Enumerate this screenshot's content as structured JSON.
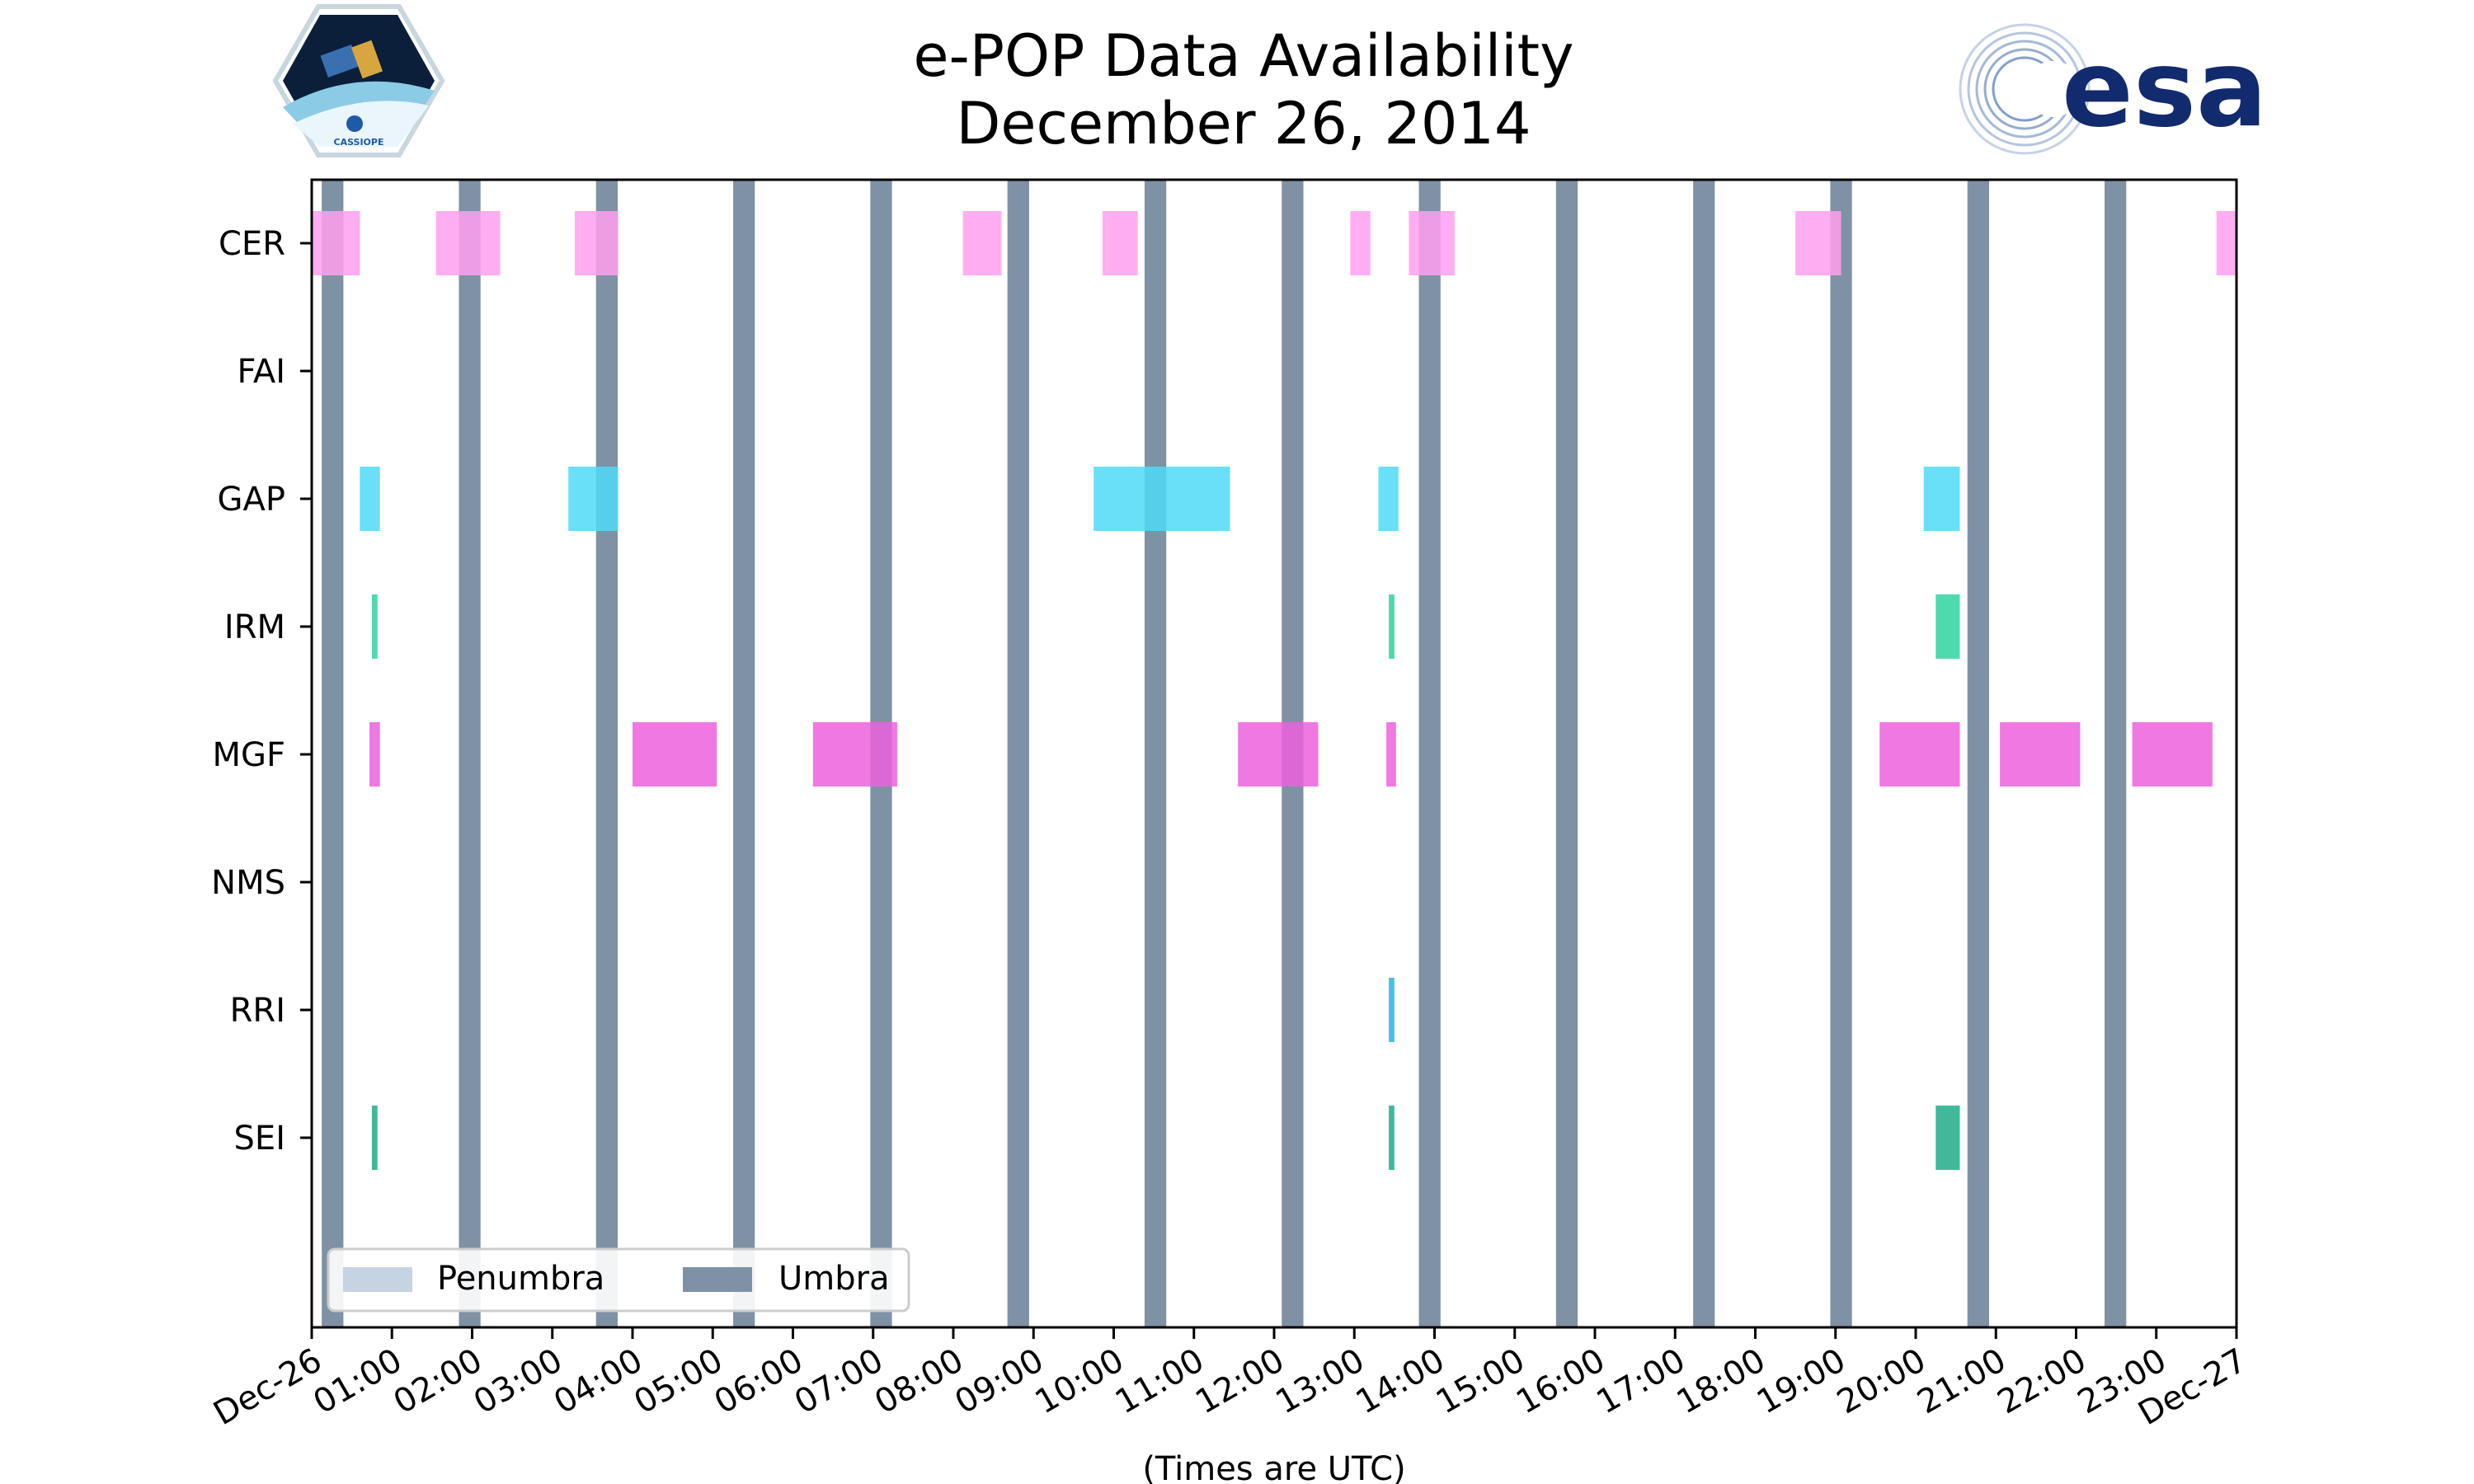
{
  "title": {
    "line1": "e-POP Data Availability",
    "line2": "December 26, 2014"
  },
  "logos": {
    "left": {
      "name": "cassiope-logo",
      "text": "CASSIOPE"
    },
    "right": {
      "name": "esa-logo",
      "text": "esa"
    }
  },
  "chart_data": {
    "type": "timeline",
    "title": "e-POP Data Availability December 26, 2014",
    "xlabel": "(Times are UTC)",
    "ylabel": "",
    "xlim_hours": [
      0,
      24
    ],
    "x_tick_labels": [
      "Dec-26",
      "01:00",
      "02:00",
      "03:00",
      "04:00",
      "05:00",
      "06:00",
      "07:00",
      "08:00",
      "09:00",
      "10:00",
      "11:00",
      "12:00",
      "13:00",
      "14:00",
      "15:00",
      "16:00",
      "17:00",
      "18:00",
      "19:00",
      "20:00",
      "21:00",
      "22:00",
      "23:00",
      "Dec-27"
    ],
    "instruments": [
      "CER",
      "FAI",
      "GAP",
      "IRM",
      "MGF",
      "NMS",
      "RRI",
      "SEI"
    ],
    "colors": {
      "CER": "#ff9ff0",
      "FAI": "#f2a35c",
      "GAP": "#4fd9f7",
      "IRM": "#2ed39e",
      "MGF": "#ec60de",
      "NMS": "#9a9a9a",
      "RRI": "#2ab3e8",
      "SEI": "#1fad88",
      "penumbra": "#c6d3e3",
      "umbra": "#7f91a4"
    },
    "umbra_hours": [
      0.26,
      1.97,
      3.68,
      5.39,
      7.1,
      8.81,
      10.52,
      12.23,
      13.94,
      15.65,
      17.36,
      19.07,
      20.78,
      22.49
    ],
    "umbra_width_hours": 0.27,
    "series": [
      {
        "name": "CER",
        "intervals": [
          [
            0.0,
            0.6
          ],
          [
            1.55,
            1.66
          ],
          [
            1.66,
            2.35
          ],
          [
            3.28,
            3.35
          ],
          [
            3.35,
            3.82
          ],
          [
            8.12,
            8.17
          ],
          [
            8.17,
            8.6
          ],
          [
            9.86,
            9.92
          ],
          [
            9.92,
            10.3
          ],
          [
            12.95,
            13.03
          ],
          [
            13.03,
            13.2
          ],
          [
            13.68,
            13.78
          ],
          [
            13.78,
            14.25
          ],
          [
            18.5,
            18.57
          ],
          [
            18.57,
            19.07
          ],
          [
            23.75,
            24.0
          ]
        ]
      },
      {
        "name": "FAI",
        "intervals": []
      },
      {
        "name": "GAP",
        "intervals": [
          [
            0.6,
            0.85
          ],
          [
            3.2,
            3.82
          ],
          [
            9.75,
            11.45
          ],
          [
            13.3,
            13.55
          ],
          [
            20.1,
            20.55
          ]
        ]
      },
      {
        "name": "IRM",
        "intervals": [
          [
            0.75,
            0.82
          ],
          [
            13.43,
            13.5
          ],
          [
            20.25,
            20.55
          ]
        ]
      },
      {
        "name": "MGF",
        "intervals": [
          [
            0.72,
            0.85
          ],
          [
            4.0,
            5.05
          ],
          [
            6.25,
            7.3
          ],
          [
            11.55,
            12.55
          ],
          [
            13.4,
            13.52
          ],
          [
            19.55,
            20.55
          ],
          [
            21.05,
            22.05
          ],
          [
            22.7,
            23.7
          ]
        ]
      },
      {
        "name": "NMS",
        "intervals": []
      },
      {
        "name": "RRI",
        "intervals": [
          [
            13.43,
            13.5
          ]
        ]
      },
      {
        "name": "SEI",
        "intervals": [
          [
            0.75,
            0.82
          ],
          [
            13.43,
            13.5
          ],
          [
            20.25,
            20.55
          ]
        ]
      }
    ],
    "legend": {
      "placement": "lower-left",
      "entries": [
        {
          "label": "Penumbra",
          "color_key": "penumbra"
        },
        {
          "label": "Umbra",
          "color_key": "umbra"
        }
      ]
    }
  }
}
